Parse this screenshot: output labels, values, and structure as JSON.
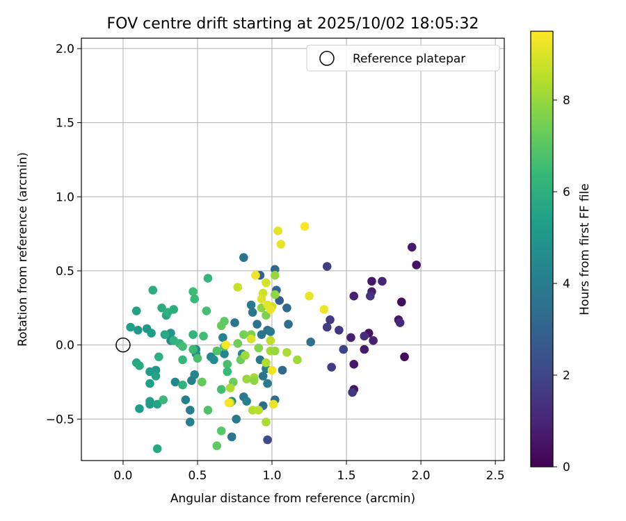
{
  "chart_data": {
    "type": "scatter",
    "title": "FOV centre drift starting at 2025/10/02 18:05:32",
    "xlabel": "Angular distance from reference (arcmin)",
    "ylabel": "Rotation from reference (arcmin)",
    "xlim": [
      -0.28,
      2.56
    ],
    "ylim": [
      -0.78,
      2.07
    ],
    "xticks": [
      0.0,
      0.5,
      1.0,
      1.5,
      2.0,
      2.5
    ],
    "xtick_labels": [
      "0.0",
      "0.5",
      "1.0",
      "1.5",
      "2.0",
      "2.5"
    ],
    "yticks": [
      -0.5,
      0.0,
      0.5,
      1.0,
      1.5,
      2.0
    ],
    "ytick_labels": [
      "−0.5",
      "0.0",
      "0.5",
      "1.0",
      "1.5",
      "2.0"
    ],
    "grid": true,
    "legend": {
      "position": "top-right",
      "entries": [
        "Reference platepar"
      ]
    },
    "reference_point": {
      "x": 0.0,
      "y": 0.0,
      "label": "Reference platepar"
    },
    "colorbar": {
      "label": "Hours from first FF file",
      "min": 0,
      "max": 9.5,
      "ticks": [
        0,
        2,
        4,
        6,
        8
      ],
      "tick_labels": [
        "0",
        "2",
        "4",
        "6",
        "8"
      ],
      "colormap": "viridis"
    },
    "series": [
      {
        "name": "FOV centre",
        "points": [
          {
            "x": 1.94,
            "y": 0.66,
            "t": 0.7
          },
          {
            "x": 1.97,
            "y": 0.54,
            "t": 0.5
          },
          {
            "x": 1.67,
            "y": 0.43,
            "t": 0.6
          },
          {
            "x": 1.74,
            "y": 0.43,
            "t": 1.0
          },
          {
            "x": 1.67,
            "y": 0.36,
            "t": 0.8
          },
          {
            "x": 1.66,
            "y": 0.33,
            "t": 1.4
          },
          {
            "x": 1.55,
            "y": 0.33,
            "t": 0.9
          },
          {
            "x": 1.87,
            "y": 0.29,
            "t": 0.3
          },
          {
            "x": 1.85,
            "y": 0.17,
            "t": 0.6
          },
          {
            "x": 1.86,
            "y": 0.15,
            "t": 1.1
          },
          {
            "x": 1.65,
            "y": 0.08,
            "t": 0.5
          },
          {
            "x": 1.62,
            "y": 0.06,
            "t": 1.2
          },
          {
            "x": 1.53,
            "y": 0.05,
            "t": 0.8
          },
          {
            "x": 1.68,
            "y": 0.03,
            "t": 0.9
          },
          {
            "x": 1.62,
            "y": -0.03,
            "t": 0.7
          },
          {
            "x": 1.89,
            "y": -0.08,
            "t": 0.2
          },
          {
            "x": 1.55,
            "y": -0.13,
            "t": 0.6
          },
          {
            "x": 1.55,
            "y": -0.3,
            "t": 0.5
          },
          {
            "x": 1.54,
            "y": -0.32,
            "t": 1.5
          },
          {
            "x": 1.37,
            "y": 0.53,
            "t": 1.8
          },
          {
            "x": 1.39,
            "y": 0.17,
            "t": 1.6
          },
          {
            "x": 1.37,
            "y": 0.12,
            "t": 1.7
          },
          {
            "x": 1.45,
            "y": 0.1,
            "t": 1.5
          },
          {
            "x": 1.48,
            "y": -0.03,
            "t": 1.9
          },
          {
            "x": 1.4,
            "y": -0.15,
            "t": 1.7
          },
          {
            "x": 0.97,
            "y": -0.64,
            "t": 2.2
          },
          {
            "x": 1.02,
            "y": 0.51,
            "t": 3.2
          },
          {
            "x": 1.03,
            "y": 0.37,
            "t": 3.1
          },
          {
            "x": 0.92,
            "y": 0.47,
            "t": 2.9
          },
          {
            "x": 1.05,
            "y": 0.3,
            "t": 2.8
          },
          {
            "x": 1.1,
            "y": 0.25,
            "t": 3.3
          },
          {
            "x": 1.11,
            "y": 0.14,
            "t": 3.4
          },
          {
            "x": 1.26,
            "y": 0.02,
            "t": 3.5
          },
          {
            "x": 1.07,
            "y": -0.17,
            "t": 3.2
          },
          {
            "x": 1.02,
            "y": -0.37,
            "t": 3.4
          },
          {
            "x": 0.94,
            "y": -0.41,
            "t": 3.4
          },
          {
            "x": 0.81,
            "y": 0.59,
            "t": 3.6
          },
          {
            "x": 0.75,
            "y": 0.15,
            "t": 3.7
          },
          {
            "x": 0.86,
            "y": 0.27,
            "t": 3.9
          },
          {
            "x": 0.87,
            "y": 0.22,
            "t": 3.8
          },
          {
            "x": 0.9,
            "y": 0.14,
            "t": 3.6
          },
          {
            "x": 0.93,
            "y": 0.07,
            "t": 3.7
          },
          {
            "x": 0.97,
            "y": 0.1,
            "t": 3.5
          },
          {
            "x": 0.99,
            "y": 0.09,
            "t": 3.9
          },
          {
            "x": 0.92,
            "y": -0.1,
            "t": 3.8
          },
          {
            "x": 0.96,
            "y": -0.16,
            "t": 4.0
          },
          {
            "x": 0.94,
            "y": -0.21,
            "t": 3.6
          },
          {
            "x": 0.97,
            "y": -0.26,
            "t": 3.9
          },
          {
            "x": 0.81,
            "y": -0.35,
            "t": 3.8
          },
          {
            "x": 0.76,
            "y": -0.5,
            "t": 3.9
          },
          {
            "x": 0.73,
            "y": -0.62,
            "t": 3.7
          },
          {
            "x": 0.45,
            "y": -0.52,
            "t": 4.1
          },
          {
            "x": 0.45,
            "y": -0.44,
            "t": 4.0
          },
          {
            "x": 0.42,
            "y": -0.37,
            "t": 4.2
          },
          {
            "x": 0.48,
            "y": -0.2,
            "t": 4.3
          },
          {
            "x": 0.46,
            "y": -0.24,
            "t": 4.1
          },
          {
            "x": 0.35,
            "y": -0.25,
            "t": 4.5
          },
          {
            "x": 0.67,
            "y": 0.05,
            "t": 4.2
          },
          {
            "x": 0.59,
            "y": -0.08,
            "t": 4.4
          },
          {
            "x": 0.61,
            "y": -0.1,
            "t": 4.6
          },
          {
            "x": 0.68,
            "y": -0.06,
            "t": 4.3
          },
          {
            "x": 0.8,
            "y": -0.06,
            "t": 4.5
          },
          {
            "x": 0.83,
            "y": -0.38,
            "t": 4.2
          },
          {
            "x": 0.73,
            "y": -0.38,
            "t": 4.4
          },
          {
            "x": 0.49,
            "y": -0.03,
            "t": 4.7
          },
          {
            "x": 0.49,
            "y": -0.06,
            "t": 4.8
          },
          {
            "x": 0.32,
            "y": 0.08,
            "t": 4.9
          },
          {
            "x": 0.32,
            "y": 0.03,
            "t": 4.6
          },
          {
            "x": 0.16,
            "y": 0.11,
            "t": 5.0
          },
          {
            "x": 0.19,
            "y": 0.08,
            "t": 5.2
          },
          {
            "x": 0.1,
            "y": 0.1,
            "t": 5.1
          },
          {
            "x": 0.05,
            "y": 0.12,
            "t": 5.3
          },
          {
            "x": 0.09,
            "y": 0.23,
            "t": 5.4
          },
          {
            "x": 0.18,
            "y": -0.18,
            "t": 5.2
          },
          {
            "x": 0.22,
            "y": -0.17,
            "t": 5.1
          },
          {
            "x": 0.22,
            "y": -0.21,
            "t": 5.5
          },
          {
            "x": 0.18,
            "y": -0.26,
            "t": 5.3
          },
          {
            "x": 0.18,
            "y": -0.38,
            "t": 5.4
          },
          {
            "x": 0.18,
            "y": -0.4,
            "t": 5.2
          },
          {
            "x": 0.23,
            "y": -0.4,
            "t": 5.5
          },
          {
            "x": 0.11,
            "y": -0.43,
            "t": 5.3
          },
          {
            "x": 0.09,
            "y": -0.12,
            "t": 5.6
          },
          {
            "x": 0.11,
            "y": -0.14,
            "t": 5.8
          },
          {
            "x": 0.23,
            "y": -0.7,
            "t": 5.7
          },
          {
            "x": 0.2,
            "y": 0.37,
            "t": 5.9
          },
          {
            "x": 0.26,
            "y": 0.25,
            "t": 5.8
          },
          {
            "x": 0.29,
            "y": 0.2,
            "t": 5.6
          },
          {
            "x": 0.3,
            "y": 0.22,
            "t": 6.0
          },
          {
            "x": 0.34,
            "y": 0.24,
            "t": 5.9
          },
          {
            "x": 0.28,
            "y": 0.07,
            "t": 5.7
          },
          {
            "x": 0.34,
            "y": 0.03,
            "t": 6.1
          },
          {
            "x": 0.38,
            "y": 0.01,
            "t": 6.2
          },
          {
            "x": 0.24,
            "y": -0.08,
            "t": 6.0
          },
          {
            "x": 0.4,
            "y": -0.1,
            "t": 6.3
          },
          {
            "x": 0.4,
            "y": -0.27,
            "t": 6.1
          },
          {
            "x": 0.27,
            "y": -0.37,
            "t": 6.4
          },
          {
            "x": 0.47,
            "y": 0.36,
            "t": 6.5
          },
          {
            "x": 0.48,
            "y": 0.31,
            "t": 6.4
          },
          {
            "x": 0.57,
            "y": 0.45,
            "t": 6.3
          },
          {
            "x": 0.56,
            "y": 0.23,
            "t": 6.6
          },
          {
            "x": 0.47,
            "y": 0.07,
            "t": 6.2
          },
          {
            "x": 0.54,
            "y": 0.06,
            "t": 6.5
          },
          {
            "x": 0.47,
            "y": -0.03,
            "t": 6.4
          },
          {
            "x": 0.5,
            "y": -0.09,
            "t": 6.7
          },
          {
            "x": 0.4,
            "y": -0.01,
            "t": 6.6
          },
          {
            "x": 0.63,
            "y": -0.04,
            "t": 6.8
          },
          {
            "x": 0.68,
            "y": -0.01,
            "t": 6.5
          },
          {
            "x": 0.7,
            "y": -0.13,
            "t": 6.7
          },
          {
            "x": 0.7,
            "y": -0.18,
            "t": 6.4
          },
          {
            "x": 0.66,
            "y": -0.3,
            "t": 6.6
          },
          {
            "x": 0.57,
            "y": -0.44,
            "t": 6.8
          },
          {
            "x": 0.66,
            "y": -0.58,
            "t": 7.0
          },
          {
            "x": 0.63,
            "y": -0.68,
            "t": 7.1
          },
          {
            "x": 0.53,
            "y": -0.25,
            "t": 7.2
          },
          {
            "x": 0.74,
            "y": -0.25,
            "t": 7.3
          },
          {
            "x": 0.66,
            "y": 0.13,
            "t": 7.2
          },
          {
            "x": 0.68,
            "y": 0.16,
            "t": 7.1
          },
          {
            "x": 0.77,
            "y": 0.01,
            "t": 7.4
          },
          {
            "x": 0.79,
            "y": -0.1,
            "t": 7.3
          },
          {
            "x": 0.81,
            "y": 0.07,
            "t": 7.5
          },
          {
            "x": 0.86,
            "y": 0.07,
            "t": 7.6
          },
          {
            "x": 0.91,
            "y": -0.02,
            "t": 7.7
          },
          {
            "x": 0.96,
            "y": 0.2,
            "t": 7.6
          },
          {
            "x": 0.93,
            "y": 0.25,
            "t": 7.8
          },
          {
            "x": 1.02,
            "y": 0.34,
            "t": 7.9
          },
          {
            "x": 1.02,
            "y": 0.47,
            "t": 8.0
          },
          {
            "x": 0.82,
            "y": -0.07,
            "t": 8.1
          },
          {
            "x": 0.83,
            "y": -0.23,
            "t": 8.0
          },
          {
            "x": 0.88,
            "y": -0.22,
            "t": 8.2
          },
          {
            "x": 0.88,
            "y": -0.24,
            "t": 7.9
          },
          {
            "x": 0.72,
            "y": -0.29,
            "t": 8.3
          },
          {
            "x": 0.72,
            "y": -0.39,
            "t": 8.2
          },
          {
            "x": 0.87,
            "y": -0.44,
            "t": 8.4
          },
          {
            "x": 0.91,
            "y": -0.44,
            "t": 8.5
          },
          {
            "x": 0.96,
            "y": -0.52,
            "t": 8.3
          },
          {
            "x": 0.96,
            "y": -0.12,
            "t": 8.4
          },
          {
            "x": 0.99,
            "y": -0.04,
            "t": 8.2
          },
          {
            "x": 1.02,
            "y": -0.04,
            "t": 8.0
          },
          {
            "x": 1.1,
            "y": -0.05,
            "t": 8.3
          },
          {
            "x": 1.17,
            "y": -0.1,
            "t": 8.1
          },
          {
            "x": 0.99,
            "y": 0.03,
            "t": 8.6
          },
          {
            "x": 1.0,
            "y": 0.26,
            "t": 8.7
          },
          {
            "x": 0.94,
            "y": 0.35,
            "t": 8.8
          },
          {
            "x": 0.96,
            "y": 0.42,
            "t": 8.9
          },
          {
            "x": 0.77,
            "y": 0.39,
            "t": 8.7
          },
          {
            "x": 0.86,
            "y": 0.04,
            "t": 9.0
          },
          {
            "x": 0.93,
            "y": 0.31,
            "t": 9.0
          },
          {
            "x": 0.97,
            "y": 0.27,
            "t": 9.1
          },
          {
            "x": 0.99,
            "y": 0.24,
            "t": 9.2
          },
          {
            "x": 1.04,
            "y": 0.77,
            "t": 9.1
          },
          {
            "x": 1.06,
            "y": 0.68,
            "t": 9.2
          },
          {
            "x": 1.22,
            "y": 0.8,
            "t": 9.4
          },
          {
            "x": 1.25,
            "y": 0.33,
            "t": 9.2
          },
          {
            "x": 1.35,
            "y": 0.24,
            "t": 9.3
          },
          {
            "x": 0.89,
            "y": 0.47,
            "t": 9.3
          },
          {
            "x": 0.69,
            "y": 0.0,
            "t": 9.4
          },
          {
            "x": 0.71,
            "y": -0.39,
            "t": 9.4
          },
          {
            "x": 1.0,
            "y": -0.17,
            "t": 9.3
          },
          {
            "x": 1.01,
            "y": -0.4,
            "t": 9.2
          }
        ]
      }
    ]
  }
}
